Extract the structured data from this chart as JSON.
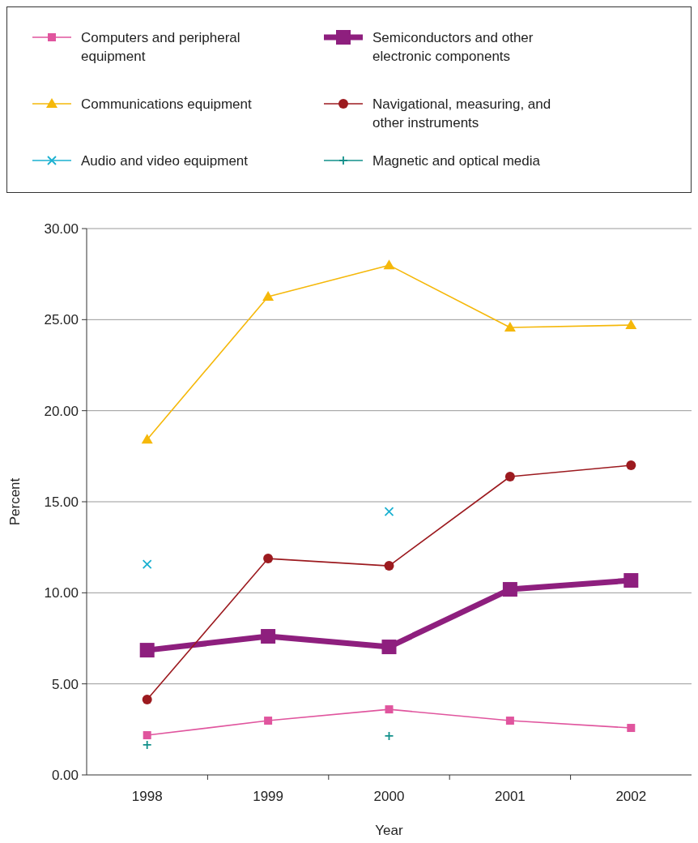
{
  "chart_data": {
    "type": "line",
    "xlabel": "Year",
    "ylabel": "Percent",
    "categories": [
      "1998",
      "1999",
      "2000",
      "2001",
      "2002"
    ],
    "ylim": [
      0,
      30
    ],
    "yticks": [
      {
        "value": 0,
        "label": "0.00"
      },
      {
        "value": 5,
        "label": "5.00"
      },
      {
        "value": 10,
        "label": "10.00"
      },
      {
        "value": 15,
        "label": "15.00"
      },
      {
        "value": 20,
        "label": "20.00"
      },
      {
        "value": 25,
        "label": "25.00"
      },
      {
        "value": 30,
        "label": "30.00"
      }
    ],
    "grid": "y",
    "legend": "top",
    "series": [
      {
        "name": "Computers and peripheral equipment",
        "color": "#e0559e",
        "marker": "square",
        "values": [
          2.18,
          2.98,
          3.6,
          2.98,
          2.58
        ]
      },
      {
        "name": "Semiconductors and other electronic components",
        "color": "#8e1f7e",
        "marker": "square",
        "values": [
          6.85,
          7.61,
          7.03,
          10.19,
          10.68
        ]
      },
      {
        "name": "Communications equipment",
        "color": "#f5b80a",
        "marker": "triangle",
        "values": [
          18.42,
          26.26,
          27.99,
          24.57,
          24.7
        ]
      },
      {
        "name": "Navigational, measuring, and other instruments",
        "color": "#9c1a1f",
        "marker": "circle",
        "values": [
          4.14,
          11.88,
          11.48,
          16.38,
          17.0
        ]
      },
      {
        "name": "Audio and video equipment",
        "color": "#1ab0d0",
        "marker": "x",
        "type": "scatter",
        "values": [
          11.57,
          null,
          14.46,
          null,
          null
        ]
      },
      {
        "name": "Magnetic and optical media",
        "color": "#11908a",
        "marker": "cross",
        "type": "scatter",
        "values": [
          1.65,
          null,
          2.14,
          null,
          null
        ]
      }
    ]
  }
}
